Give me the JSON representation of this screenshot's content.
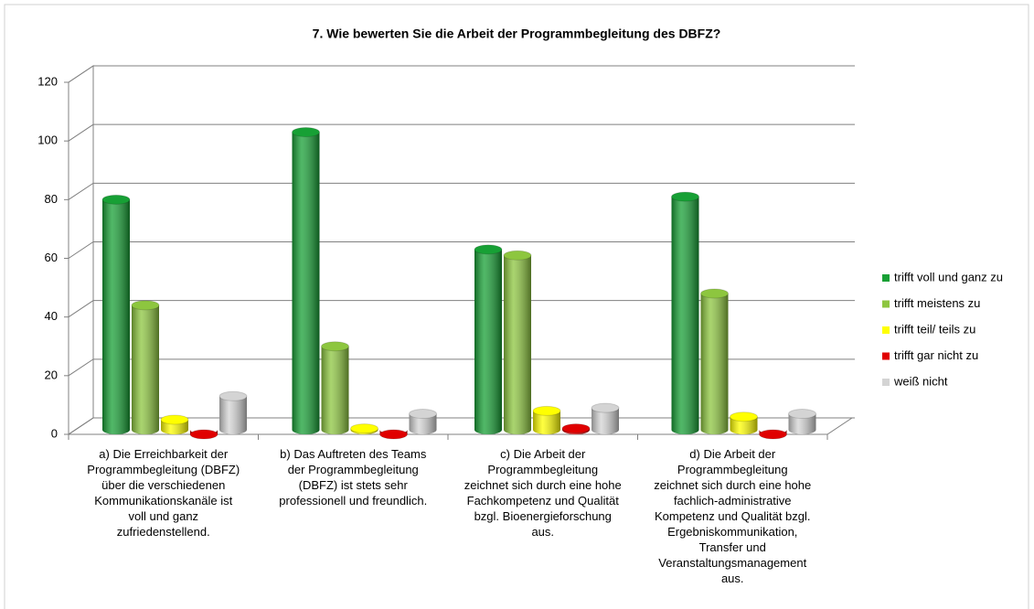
{
  "chart_data": {
    "type": "bar3d",
    "title": "7. Wie bewerten Sie die Arbeit der Programmbegleitung des DBFZ?",
    "categories": [
      "a) Die Erreichbarkeit der\nProgrammbegleitung (DBFZ)\nüber die verschiedenen\nKommunikationskanäle ist\nvoll und ganz\nzufriedenstellend.",
      "b) Das Auftreten des Teams\nder Programmbegleitung\n(DBFZ) ist stets sehr\nprofessionell und freundlich.",
      "c) Die Arbeit der\nProgrammbegleitung\nzeichnet sich durch eine hohe\nFachkompetenz und Qualität\nbzgl. Bioenergieforschung\naus.",
      "d) Die Arbeit der\nProgrammbegleitung\nzeichnet sich durch eine hohe\nfachlich-administrative\nKompetenz und Qualität bzgl.\nErgebniskommunikation,\nTransfer und\nVeranstaltungsmanagement\naus."
    ],
    "series": [
      {
        "name": "trifft voll und ganz zu",
        "color": "#17a035",
        "values": [
          80,
          103,
          63,
          81
        ]
      },
      {
        "name": "trifft meistens zu",
        "color": "#8dc63f",
        "values": [
          44,
          30,
          61,
          48
        ]
      },
      {
        "name": "trifft teil/ teils zu",
        "color": "#ffff00",
        "values": [
          5,
          2,
          8,
          6
        ]
      },
      {
        "name": "trifft gar nicht zu",
        "color": "#e00000",
        "values": [
          0,
          0,
          2,
          0
        ]
      },
      {
        "name": "weiß nicht",
        "color": "#d4d4d4",
        "values": [
          13,
          7,
          9,
          7
        ]
      }
    ],
    "ylim": [
      0,
      120
    ],
    "yticks": [
      0,
      20,
      40,
      60,
      80,
      100,
      120
    ],
    "grid": true,
    "legend": "right"
  }
}
